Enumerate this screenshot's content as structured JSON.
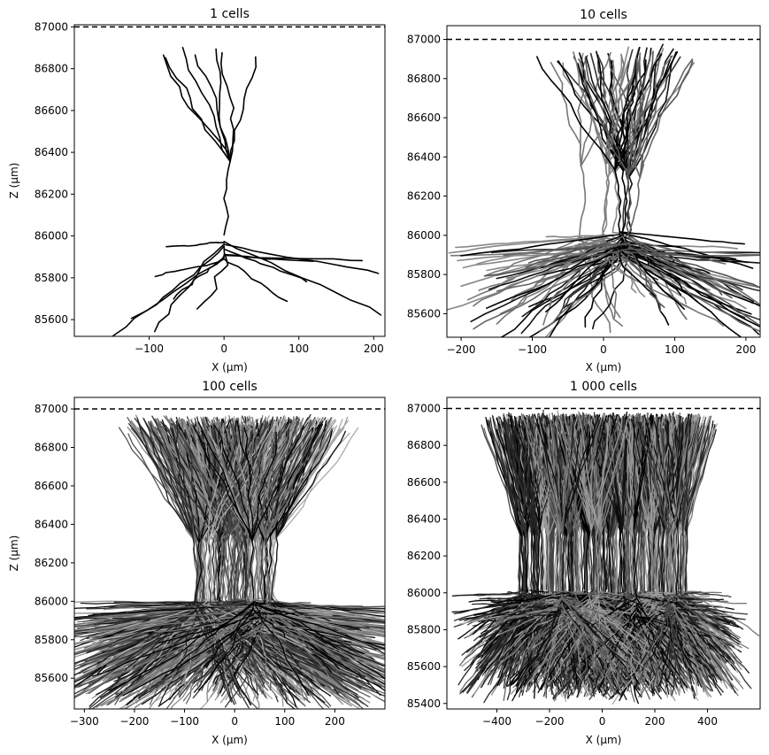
{
  "chart_data": [
    {
      "type": "line",
      "title": "1 cells",
      "xlabel": "X (μm)",
      "ylabel": "Z (μm)",
      "xlim": [
        -200,
        215
      ],
      "ylim": [
        85520,
        87010
      ],
      "xticks": [
        -100,
        0,
        100,
        200
      ],
      "xtick_labels": [
        "−100",
        "0",
        "100",
        "200"
      ],
      "yticks": [
        85600,
        85800,
        86000,
        86200,
        86400,
        86600,
        86800,
        87000
      ],
      "ytick_labels": [
        "85600",
        "85800",
        "86000",
        "86200",
        "86400",
        "86600",
        "86800",
        "87000"
      ],
      "reference_line": {
        "z": 87000,
        "style": "dashed",
        "color": "#000000"
      },
      "cells": 1,
      "apical_top": 86930,
      "apical_half_width": 160,
      "trunk_top": 86330,
      "soma_z": 86000,
      "basal_bottom": 85580,
      "basal_half_width": 195,
      "grid": false
    },
    {
      "type": "line",
      "title": "10 cells",
      "xlabel": "X (μm)",
      "ylabel": "",
      "xlim": [
        -220,
        220
      ],
      "ylim": [
        85480,
        87070
      ],
      "xticks": [
        -200,
        -100,
        0,
        100,
        200
      ],
      "xtick_labels": [
        "−200",
        "−100",
        "0",
        "100",
        "200"
      ],
      "yticks": [
        85600,
        85800,
        86000,
        86200,
        86400,
        86600,
        86800,
        87000
      ],
      "ytick_labels": [
        "85600",
        "85800",
        "86000",
        "86200",
        "86400",
        "86600",
        "86800",
        "87000"
      ],
      "reference_line": {
        "z": 87000,
        "style": "dashed",
        "color": "#000000"
      },
      "cells": 10,
      "apical_top": 86960,
      "apical_half_width": 170,
      "trunk_top": 86330,
      "soma_z": 86000,
      "basal_bottom": 85550,
      "basal_half_width": 200,
      "grid": false
    },
    {
      "type": "line",
      "title": "100 cells",
      "xlabel": "X (μm)",
      "ylabel": "Z (μm)",
      "xlim": [
        -320,
        300
      ],
      "ylim": [
        85440,
        87060
      ],
      "xticks": [
        -300,
        -200,
        -100,
        0,
        100,
        200
      ],
      "xtick_labels": [
        "−300",
        "−200",
        "−100",
        "0",
        "100",
        "200"
      ],
      "yticks": [
        85600,
        85800,
        86000,
        86200,
        86400,
        86600,
        86800,
        87000
      ],
      "ytick_labels": [
        "85600",
        "85800",
        "86000",
        "86200",
        "86400",
        "86600",
        "86800",
        "87000"
      ],
      "reference_line": {
        "z": 87000,
        "style": "dashed",
        "color": "#000000"
      },
      "cells": 100,
      "apical_top": 86960,
      "apical_half_width": 250,
      "trunk_top": 86330,
      "soma_z": 86000,
      "basal_bottom": 85520,
      "basal_half_width": 280,
      "grid": false
    },
    {
      "type": "line",
      "title": "1 000 cells",
      "xlabel": "X (μm)",
      "ylabel": "",
      "xlim": [
        -590,
        600
      ],
      "ylim": [
        85370,
        87060
      ],
      "xticks": [
        -400,
        -200,
        0,
        200,
        400
      ],
      "xtick_labels": [
        "−400",
        "−200",
        "0",
        "200",
        "400"
      ],
      "yticks": [
        85400,
        85600,
        85800,
        86000,
        86200,
        86400,
        86600,
        86800,
        87000
      ],
      "ytick_labels": [
        "85400",
        "85600",
        "85800",
        "86000",
        "86200",
        "86400",
        "86600",
        "86800",
        "87000"
      ],
      "reference_line": {
        "z": 87000,
        "style": "dashed",
        "color": "#000000"
      },
      "cells": 1000,
      "apical_top": 86970,
      "apical_half_width": 520,
      "trunk_top": 86330,
      "soma_z": 86000,
      "basal_bottom": 85520,
      "basal_half_width": 540,
      "grid": false
    }
  ],
  "colors": {
    "background": "#ffffff",
    "axes": "#000000",
    "morphology_palette": [
      "#000000",
      "#111111",
      "#222222",
      "#333333",
      "#444444",
      "#555555",
      "#666666",
      "#777777",
      "#888888",
      "#999999",
      "#aaaaaa"
    ]
  }
}
